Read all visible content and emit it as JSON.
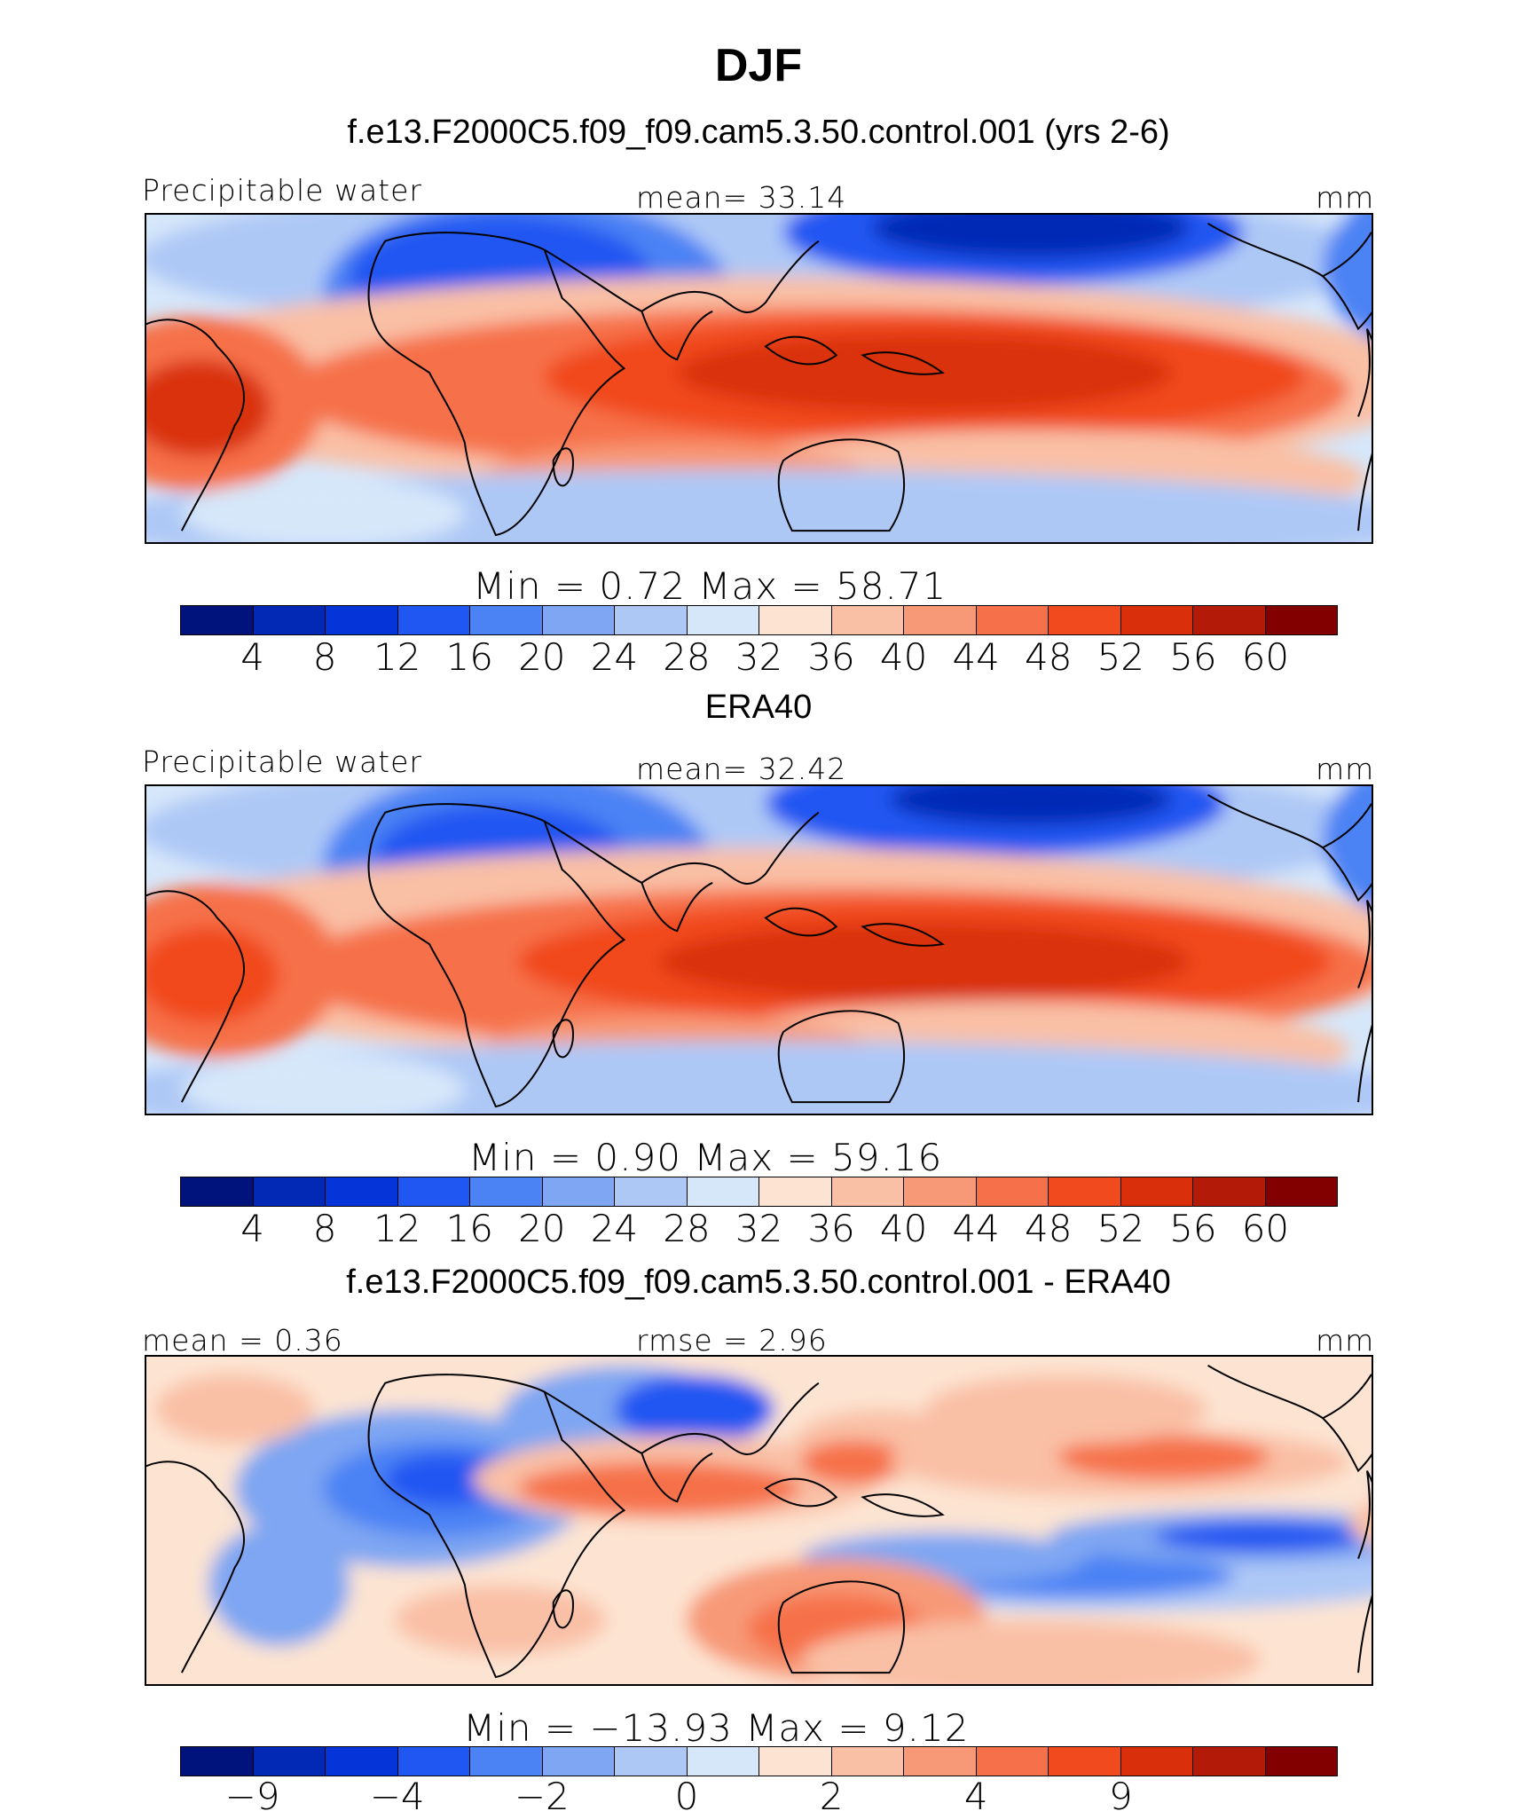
{
  "figure": {
    "title": "DJF"
  },
  "palette": [
    "#00137d",
    "#0129b6",
    "#0534d8",
    "#2057f2",
    "#4b82f4",
    "#7ea6f2",
    "#aec8f6",
    "#d6e7fa",
    "#fde4d2",
    "#f9c0a6",
    "#f79977",
    "#f6714a",
    "#f14a1f",
    "#d9300b",
    "#b31a07",
    "#820000"
  ],
  "panels": [
    {
      "subtitle": "f.e13.F2000C5.f09_f09.cam5.3.50.control.001 (yrs 2-6)",
      "left_label": "Precipitable water",
      "center_label": "mean=   33.14",
      "right_label": "mm",
      "stats": "Min  =     0.72  Max  =    58.71",
      "colorbar_ticks": [
        "4",
        "8",
        "12",
        "16",
        "20",
        "24",
        "28",
        "32",
        "36",
        "40",
        "44",
        "48",
        "52",
        "56",
        "60"
      ],
      "field": "model"
    },
    {
      "subtitle": "ERA40",
      "left_label": "Precipitable water",
      "center_label": "mean=   32.42",
      "right_label": "mm",
      "stats": "Min  =     0.90  Max  =    59.16",
      "colorbar_ticks": [
        "4",
        "8",
        "12",
        "16",
        "20",
        "24",
        "28",
        "32",
        "36",
        "40",
        "44",
        "48",
        "52",
        "56",
        "60"
      ],
      "field": "obs"
    },
    {
      "subtitle": "f.e13.F2000C5.f09_f09.cam5.3.50.control.001 - ERA40",
      "left_label": "mean  =    0.36",
      "center_label": "rmse  =    2.96",
      "right_label": "mm",
      "stats": "Min  = −13.93  Max  =     9.12",
      "colorbar_ticks": [
        "−9",
        "",
        "−4",
        "",
        "−2",
        "",
        "0",
        "",
        "2",
        "",
        "4",
        "",
        "9",
        "",
        ""
      ],
      "field": "diff"
    }
  ]
}
